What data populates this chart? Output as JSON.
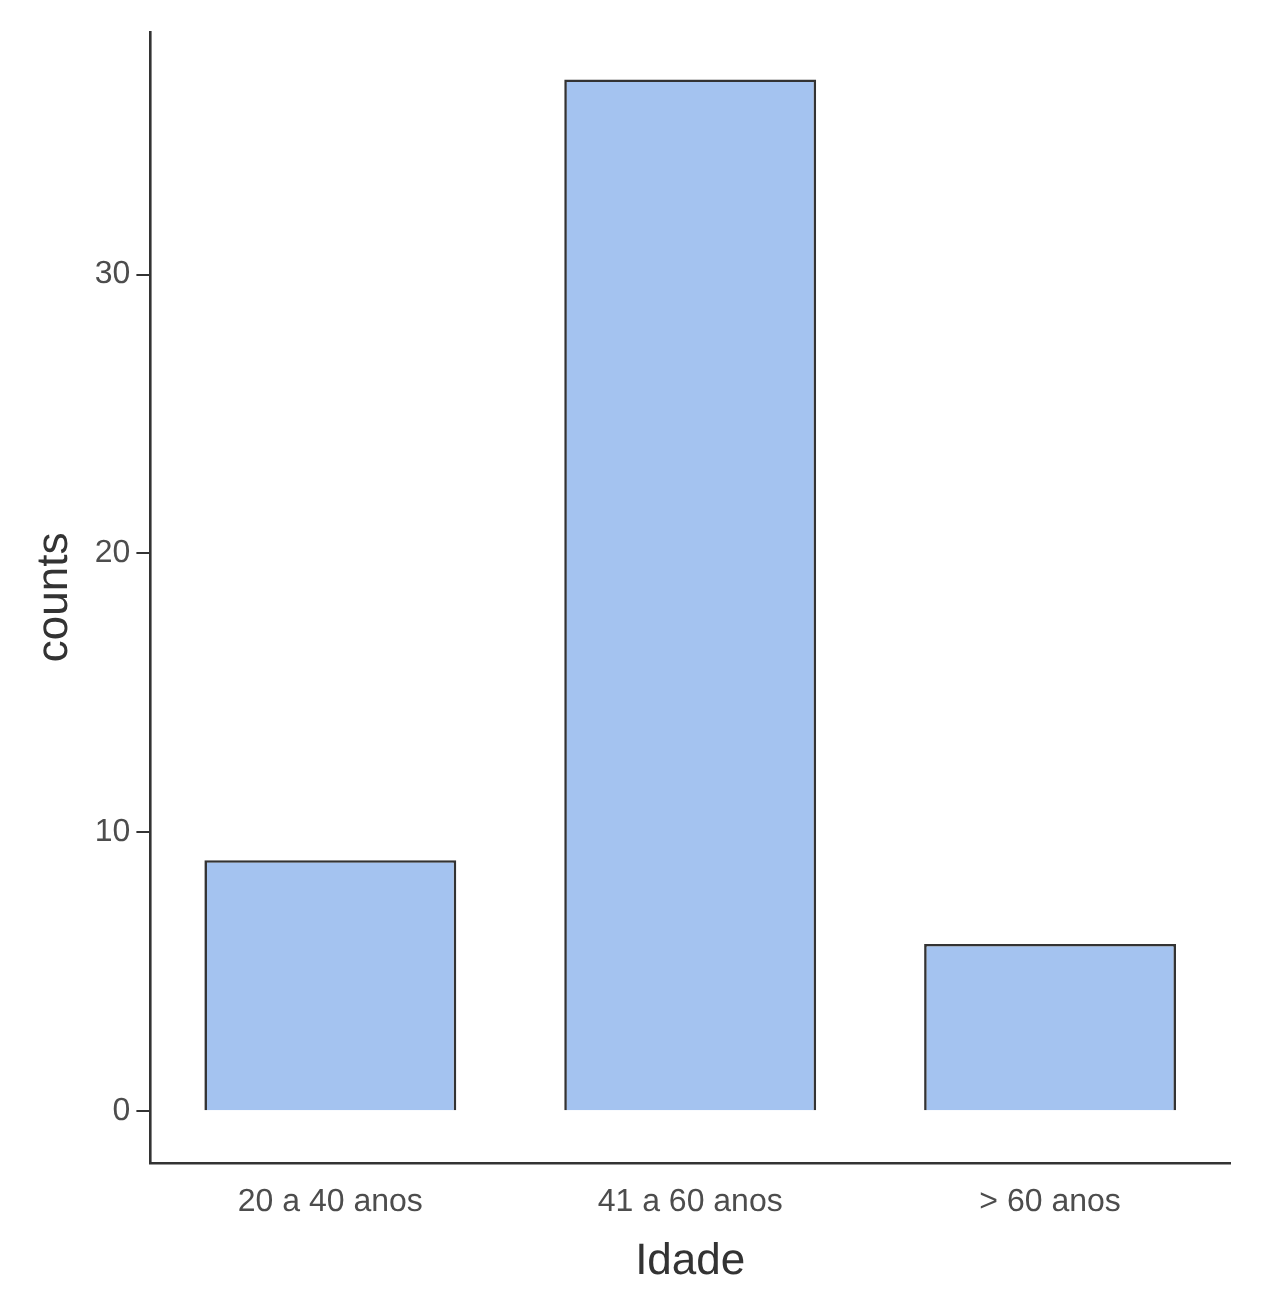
{
  "chart_data": {
    "type": "bar",
    "xlabel": "Idade",
    "ylabel": "counts",
    "categories": [
      "20 a 40 anos",
      "41 a 60 anos",
      "> 60 anos"
    ],
    "values": [
      9,
      37,
      6
    ],
    "color": "#a4c3f0",
    "ylim": [
      -1.85,
      38.7
    ],
    "yticks": [
      0,
      10,
      20,
      30
    ],
    "grid": false,
    "legend": false
  }
}
